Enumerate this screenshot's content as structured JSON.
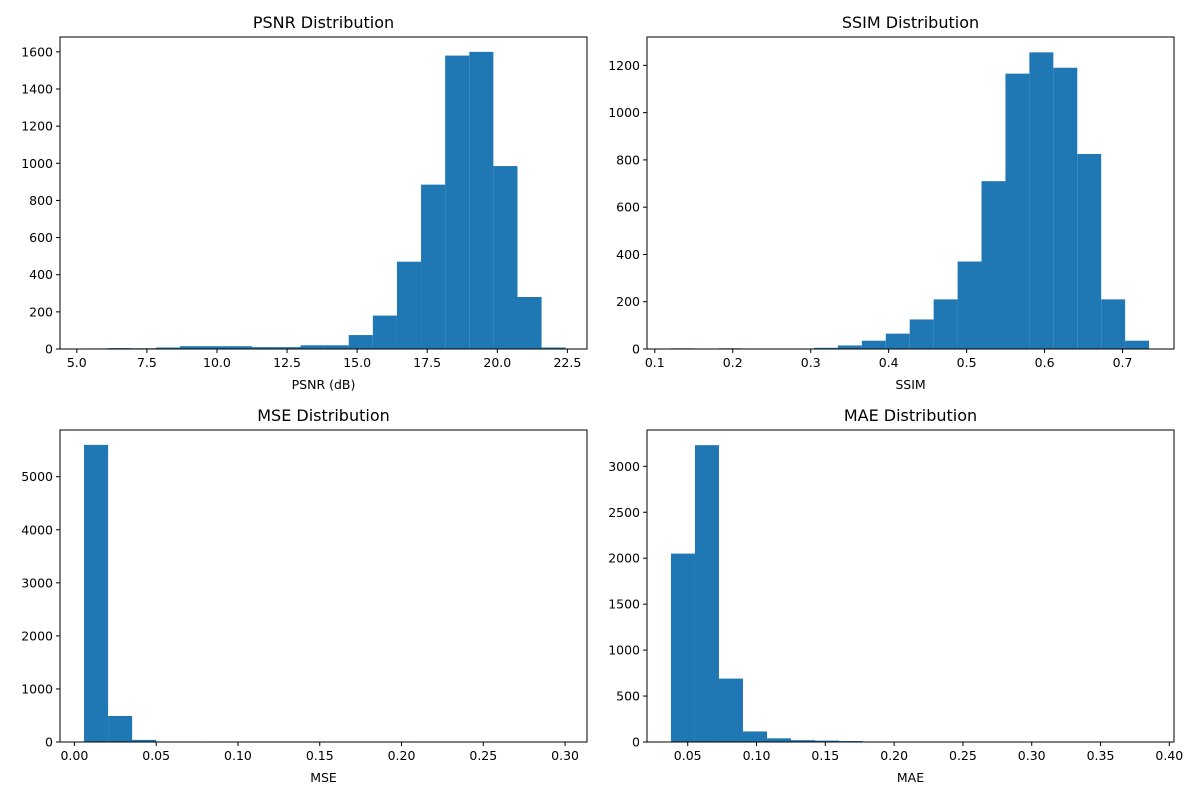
{
  "chart_data": [
    {
      "type": "bar",
      "title": "PSNR Distribution",
      "xlabel": "PSNR (dB)",
      "ylabel": "",
      "xlim": [
        4.4,
        23.2
      ],
      "ylim": [
        0,
        1680
      ],
      "xticks": [
        5.0,
        7.5,
        10.0,
        12.5,
        15.0,
        17.5,
        20.0,
        22.5
      ],
      "xtick_labels": [
        "5.0",
        "7.5",
        "10.0",
        "12.5",
        "15.0",
        "17.5",
        "20.0",
        "22.5"
      ],
      "yticks": [
        0,
        200,
        400,
        600,
        800,
        1000,
        1200,
        1400,
        1600
      ],
      "ytick_labels": [
        "0",
        "200",
        "400",
        "600",
        "800",
        "1000",
        "1200",
        "1400",
        "1600"
      ],
      "bin_start": 5.24,
      "bin_width": 0.86,
      "values": [
        3,
        5,
        4,
        8,
        15,
        15,
        15,
        10,
        10,
        20,
        20,
        75,
        180,
        470,
        885,
        1580,
        1600,
        985,
        280,
        8
      ]
    },
    {
      "type": "bar",
      "title": "SSIM Distribution",
      "xlabel": "SSIM",
      "ylabel": "",
      "xlim": [
        0.09,
        0.766
      ],
      "ylim": [
        0,
        1320
      ],
      "xticks": [
        0.1,
        0.2,
        0.3,
        0.4,
        0.5,
        0.6,
        0.7
      ],
      "xtick_labels": [
        "0.1",
        "0.2",
        "0.3",
        "0.4",
        "0.5",
        "0.6",
        "0.7"
      ],
      "yticks": [
        0,
        200,
        400,
        600,
        800,
        1000,
        1200
      ],
      "ytick_labels": [
        "0",
        "200",
        "400",
        "600",
        "800",
        "1000",
        "1200"
      ],
      "bin_start": 0.12,
      "bin_width": 0.0307,
      "values": [
        3,
        0,
        3,
        0,
        0,
        0,
        5,
        15,
        35,
        65,
        125,
        210,
        370,
        710,
        1165,
        1255,
        1190,
        825,
        210,
        35
      ]
    },
    {
      "type": "bar",
      "title": "MSE Distribution",
      "xlabel": "MSE",
      "ylabel": "",
      "xlim": [
        -0.0088,
        0.3134
      ],
      "ylim": [
        0,
        5880
      ],
      "xticks": [
        0.0,
        0.05,
        0.1,
        0.15,
        0.2,
        0.25,
        0.3
      ],
      "xtick_labels": [
        "0.00",
        "0.05",
        "0.10",
        "0.15",
        "0.20",
        "0.25",
        "0.30"
      ],
      "yticks": [
        0,
        1000,
        2000,
        3000,
        4000,
        5000
      ],
      "ytick_labels": [
        "0",
        "1000",
        "2000",
        "3000",
        "4000",
        "5000"
      ],
      "bin_start": 0.0059,
      "bin_width": 0.0147,
      "values": [
        5600,
        490,
        40,
        10,
        10,
        5,
        5,
        5,
        5,
        5,
        0,
        0,
        0,
        10,
        0,
        0,
        0,
        0,
        0,
        0
      ]
    },
    {
      "type": "bar",
      "title": "MAE Distribution",
      "xlabel": "MAE",
      "ylabel": "",
      "xlim": [
        0.0204,
        0.4034
      ],
      "ylim": [
        0,
        3395
      ],
      "xticks": [
        0.05,
        0.1,
        0.15,
        0.2,
        0.25,
        0.3,
        0.35,
        0.4
      ],
      "xtick_labels": [
        "0.05",
        "0.10",
        "0.15",
        "0.20",
        "0.25",
        "0.30",
        "0.35",
        "0.40"
      ],
      "yticks": [
        0,
        500,
        1000,
        1500,
        2000,
        2500,
        3000
      ],
      "ytick_labels": [
        "0",
        "500",
        "1000",
        "1500",
        "2000",
        "2500",
        "3000"
      ],
      "bin_start": 0.0378,
      "bin_width": 0.01745,
      "values": [
        2050,
        3230,
        690,
        115,
        40,
        20,
        15,
        10,
        5,
        5,
        0,
        0,
        0,
        5,
        5,
        0,
        5,
        0,
        5,
        0
      ]
    }
  ]
}
